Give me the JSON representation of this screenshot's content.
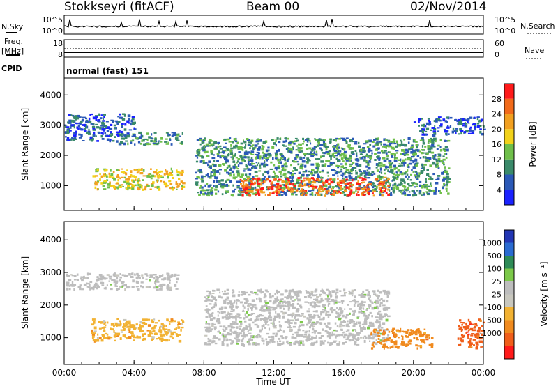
{
  "header": {
    "station": "Stokkseyri (fitACF)",
    "beam": "Beam 00",
    "date": "02/Nov/2014"
  },
  "panels": {
    "nsky": {
      "label": "N.Sky",
      "ticks_left": [
        "10^5",
        "10^0"
      ],
      "ticks_right": [
        "10^5",
        "10^0"
      ],
      "right_label": "N.Search"
    },
    "freq": {
      "label_line1": "Freq.",
      "label_line2": "[MHz]",
      "ticks_left": [
        "18",
        "8"
      ],
      "ticks_right": [
        "60",
        "0"
      ],
      "right_label": "Nave"
    },
    "cpid": {
      "label": "CPID",
      "mode": "normal (fast) 151"
    }
  },
  "colors": {
    "power_scale": [
      "#1a22ff",
      "#2b59b7",
      "#3a8a6a",
      "#6fbf4a",
      "#f2d21a",
      "#f2a020",
      "#f26a1a",
      "#ff1a1a"
    ],
    "velocity_scale": [
      "#2236b4",
      "#2a6bd1",
      "#2e8b57",
      "#7cc94a",
      "#bdbdbd",
      "#c8c7be",
      "#f2b233",
      "#f08a1e",
      "#f05e1a",
      "#ff1a1a"
    ]
  },
  "chart_data": [
    {
      "type": "heatmap",
      "panel": "power",
      "xlabel": "Time UT",
      "ylabel": "Slant Range [km]",
      "x_ticks": [
        "00:00",
        "04:00",
        "08:00",
        "12:00",
        "16:00",
        "20:00",
        "00:00"
      ],
      "xlim_hours": [
        0,
        24
      ],
      "y_ticks": [
        1000,
        2000,
        3000,
        4000
      ],
      "ylim": [
        180,
        4560
      ],
      "colorbar": {
        "label": "Power [dB]",
        "tick_labels": [
          "4",
          "8",
          "12",
          "16",
          "20",
          "24",
          "28"
        ],
        "range": [
          0,
          32
        ]
      },
      "echo_regions": [
        {
          "t_start": 1.6,
          "t_end": 6.8,
          "range_start": 900,
          "range_end": 1600,
          "value_db": 16
        },
        {
          "t_start": 3.0,
          "t_end": 6.8,
          "range_start": 2400,
          "range_end": 2800,
          "value_db": 10
        },
        {
          "t_start": 7.5,
          "t_end": 22.0,
          "range_start": 700,
          "range_end": 2600,
          "value_db": 8
        },
        {
          "t_start": 10.0,
          "t_end": 18.5,
          "range_start": 700,
          "range_end": 1300,
          "value_db": 26
        },
        {
          "t_start": 0.0,
          "t_end": 4.0,
          "range_start": 2500,
          "range_end": 3400,
          "value_db": 6
        },
        {
          "t_start": 20.0,
          "t_end": 24.0,
          "range_start": 2700,
          "range_end": 3300,
          "value_db": 6
        }
      ]
    },
    {
      "type": "heatmap",
      "panel": "velocity",
      "xlabel": "Time UT",
      "ylabel": "Slant Range [km]",
      "x_ticks": [
        "00:00",
        "04:00",
        "08:00",
        "12:00",
        "16:00",
        "20:00",
        "00:00"
      ],
      "xlim_hours": [
        0,
        24
      ],
      "y_ticks": [
        1000,
        2000,
        3000,
        4000
      ],
      "ylim": [
        180,
        4560
      ],
      "colorbar": {
        "label": "Velocity [m s⁻¹]",
        "tick_labels": [
          "1000",
          "500",
          "100",
          "25",
          "-25",
          "-100",
          "-500",
          "-1000"
        ]
      },
      "echo_regions": [
        {
          "t_start": 1.5,
          "t_end": 6.8,
          "range_start": 900,
          "range_end": 1600,
          "value_ms": -200
        },
        {
          "t_start": 8.0,
          "t_end": 18.5,
          "range_start": 800,
          "range_end": 2500,
          "value_ms": 0
        },
        {
          "t_start": 0.0,
          "t_end": 6.5,
          "range_start": 2500,
          "range_end": 3000,
          "value_ms": 0
        },
        {
          "t_start": 17.5,
          "t_end": 21.0,
          "range_start": 700,
          "range_end": 1300,
          "value_ms": -400
        },
        {
          "t_start": 22.5,
          "t_end": 24.0,
          "range_start": 700,
          "range_end": 1600,
          "value_ms": -600
        }
      ]
    }
  ]
}
